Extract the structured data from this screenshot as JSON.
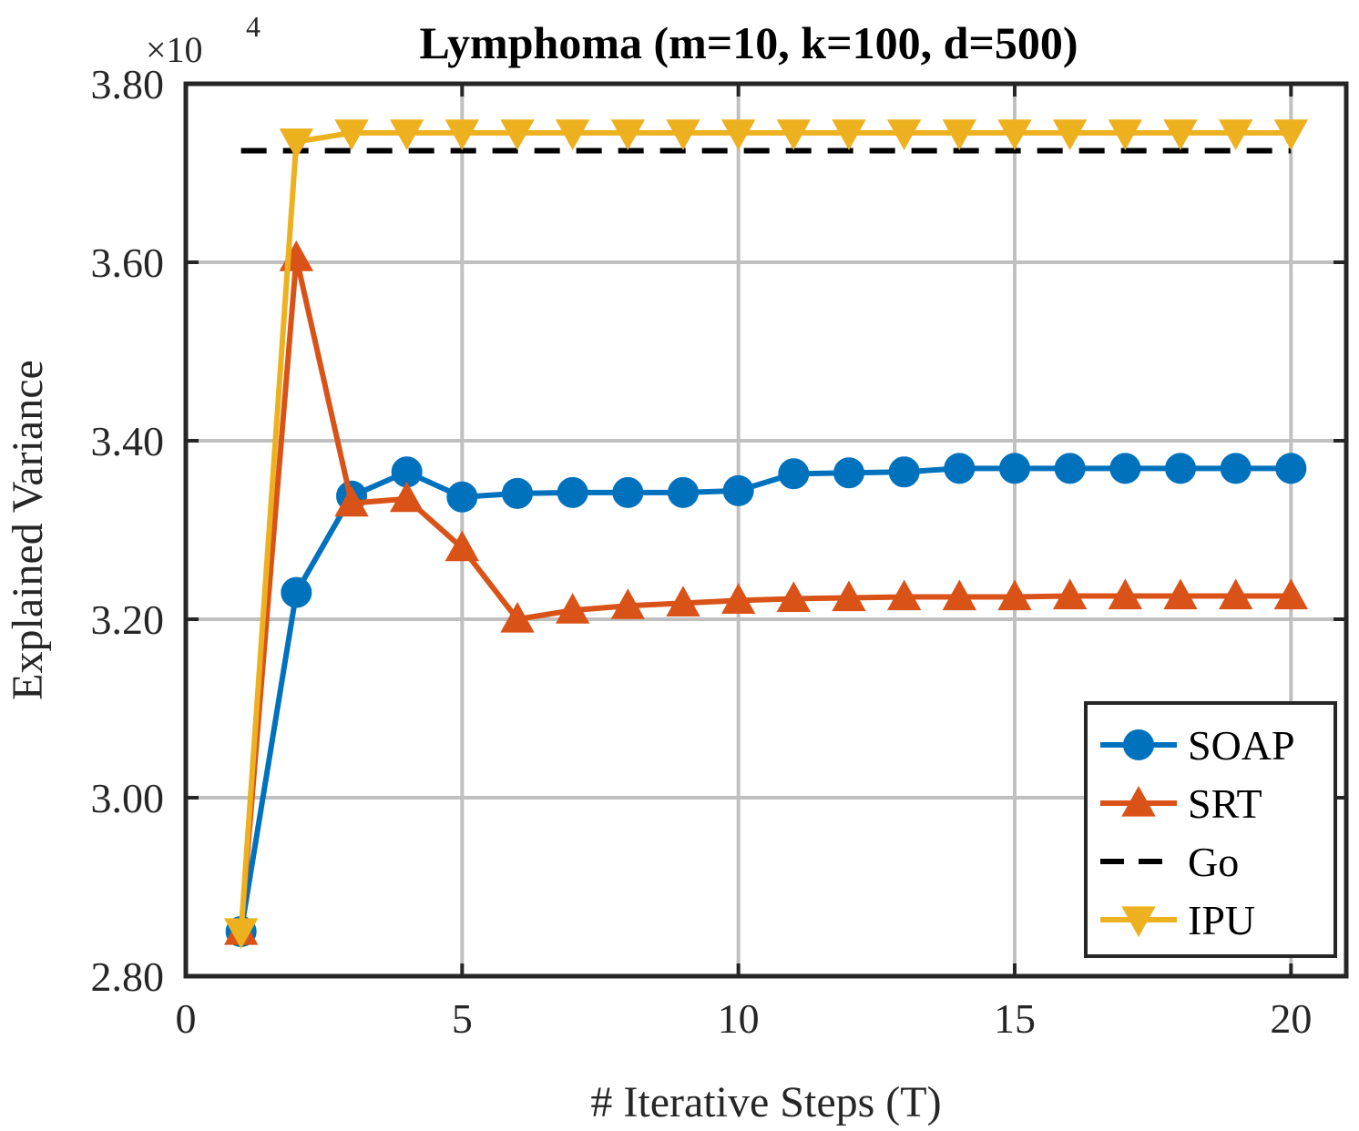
{
  "chart_data": {
    "type": "line",
    "title": "Lymphoma (m=10, k=100, d=500)",
    "xlabel": "# Iterative Steps (T)",
    "ylabel": "Explained Variance",
    "y_exponent_label": "×10",
    "y_exponent_power": "4",
    "xlim": [
      0,
      21
    ],
    "ylim": [
      2.8,
      3.8
    ],
    "x_ticks": [
      0,
      5,
      10,
      15,
      20
    ],
    "x_tick_labels": [
      "0",
      "5",
      "10",
      "15",
      "20"
    ],
    "y_ticks": [
      2.8,
      3.0,
      3.2,
      3.4,
      3.6,
      3.8
    ],
    "y_tick_labels": [
      "2.80",
      "3.00",
      "3.20",
      "3.40",
      "3.60",
      "3.80"
    ],
    "grid": true,
    "legend_position": "bottom-right",
    "x": [
      1,
      2,
      3,
      4,
      5,
      6,
      7,
      8,
      9,
      10,
      11,
      12,
      13,
      14,
      15,
      16,
      17,
      18,
      19,
      20
    ],
    "series": [
      {
        "name": "SOAP",
        "color": "#0072BD",
        "marker": "circle",
        "dash": "solid",
        "values": [
          2.85,
          3.23,
          3.338,
          3.365,
          3.337,
          3.341,
          3.342,
          3.342,
          3.342,
          3.344,
          3.363,
          3.364,
          3.365,
          3.369,
          3.369,
          3.369,
          3.369,
          3.369,
          3.369,
          3.369
        ]
      },
      {
        "name": "SRT",
        "color": "#D95319",
        "marker": "triangle-up",
        "dash": "solid",
        "values": [
          2.85,
          3.605,
          3.33,
          3.335,
          3.28,
          3.2,
          3.21,
          3.215,
          3.218,
          3.221,
          3.223,
          3.224,
          3.225,
          3.225,
          3.225,
          3.226,
          3.226,
          3.226,
          3.226,
          3.226
        ]
      },
      {
        "name": "Go",
        "color": "#000000",
        "marker": "none",
        "dash": "dashed",
        "values": [
          3.725,
          3.725,
          3.725,
          3.725,
          3.725,
          3.725,
          3.725,
          3.725,
          3.725,
          3.725,
          3.725,
          3.725,
          3.725,
          3.725,
          3.725,
          3.725,
          3.725,
          3.725,
          3.725,
          3.725
        ]
      },
      {
        "name": "IPU",
        "color": "#EDB120",
        "marker": "triangle-down",
        "dash": "solid",
        "values": [
          2.85,
          3.735,
          3.745,
          3.745,
          3.745,
          3.745,
          3.745,
          3.745,
          3.745,
          3.745,
          3.745,
          3.745,
          3.745,
          3.745,
          3.745,
          3.745,
          3.745,
          3.745,
          3.745,
          3.745
        ]
      }
    ]
  }
}
